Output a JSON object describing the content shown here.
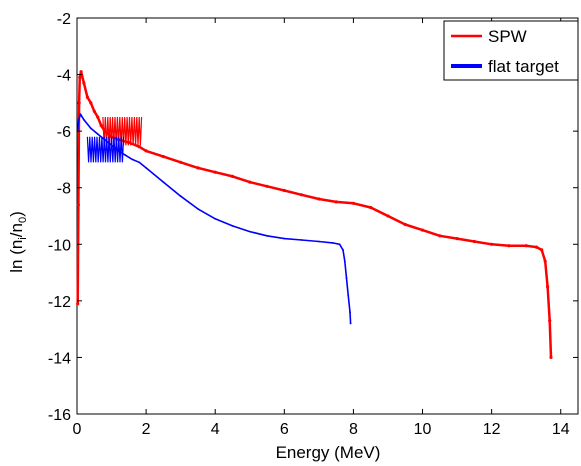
{
  "chart_data": {
    "type": "line",
    "title": "",
    "xlabel": "Energy (MeV)",
    "ylabel_parts": {
      "prefix": "ln (n",
      "sub1": "i",
      "mid": "/n",
      "sub2": "0",
      "suffix": ")"
    },
    "xlim": [
      0,
      14.5
    ],
    "ylim": [
      -16,
      -2
    ],
    "x_ticks": [
      0,
      2,
      4,
      6,
      8,
      10,
      12,
      14
    ],
    "y_ticks": [
      -16,
      -14,
      -12,
      -10,
      -8,
      -6,
      -4,
      -2
    ],
    "grid": false,
    "legend_position": "top-right",
    "series": [
      {
        "name": "SPW",
        "color": "#ff0000",
        "band": {
          "x_start": 0.75,
          "x_end": 1.9,
          "low": -6.5,
          "high": -5.5
        },
        "points": [
          [
            0.02,
            -12.1
          ],
          [
            0.04,
            -8.6
          ],
          [
            0.06,
            -5.0
          ],
          [
            0.08,
            -4.1
          ],
          [
            0.12,
            -3.9
          ],
          [
            0.2,
            -4.3
          ],
          [
            0.3,
            -4.8
          ],
          [
            0.4,
            -5.0
          ],
          [
            0.5,
            -5.3
          ],
          [
            0.6,
            -5.5
          ],
          [
            0.7,
            -5.8
          ],
          [
            0.8,
            -6.0
          ],
          [
            1.0,
            -6.2
          ],
          [
            1.2,
            -6.3
          ],
          [
            1.5,
            -6.4
          ],
          [
            1.8,
            -6.55
          ],
          [
            2.0,
            -6.7
          ],
          [
            2.5,
            -6.9
          ],
          [
            3.0,
            -7.1
          ],
          [
            3.5,
            -7.3
          ],
          [
            4.0,
            -7.45
          ],
          [
            4.5,
            -7.6
          ],
          [
            5.0,
            -7.8
          ],
          [
            5.5,
            -7.95
          ],
          [
            6.0,
            -8.1
          ],
          [
            6.5,
            -8.25
          ],
          [
            7.0,
            -8.4
          ],
          [
            7.5,
            -8.5
          ],
          [
            8.0,
            -8.55
          ],
          [
            8.5,
            -8.7
          ],
          [
            9.0,
            -9.0
          ],
          [
            9.5,
            -9.3
          ],
          [
            10.0,
            -9.5
          ],
          [
            10.5,
            -9.7
          ],
          [
            11.0,
            -9.8
          ],
          [
            11.5,
            -9.9
          ],
          [
            12.0,
            -10.0
          ],
          [
            12.5,
            -10.05
          ],
          [
            13.0,
            -10.05
          ],
          [
            13.3,
            -10.1
          ],
          [
            13.45,
            -10.2
          ],
          [
            13.55,
            -10.6
          ],
          [
            13.62,
            -11.5
          ],
          [
            13.68,
            -12.7
          ],
          [
            13.72,
            -14.0
          ]
        ]
      },
      {
        "name": "flat target",
        "color": "#0000ff",
        "band": {
          "x_start": 0.3,
          "x_end": 1.35,
          "low": -7.1,
          "high": -6.2
        },
        "points": [
          [
            0.02,
            -6.0
          ],
          [
            0.05,
            -5.6
          ],
          [
            0.1,
            -5.4
          ],
          [
            0.2,
            -5.6
          ],
          [
            0.4,
            -5.9
          ],
          [
            0.6,
            -6.1
          ],
          [
            0.8,
            -6.3
          ],
          [
            1.0,
            -6.5
          ],
          [
            1.2,
            -6.7
          ],
          [
            1.4,
            -6.85
          ],
          [
            1.6,
            -7.0
          ],
          [
            1.8,
            -7.1
          ],
          [
            2.0,
            -7.3
          ],
          [
            2.5,
            -7.8
          ],
          [
            3.0,
            -8.3
          ],
          [
            3.5,
            -8.75
          ],
          [
            4.0,
            -9.1
          ],
          [
            4.5,
            -9.35
          ],
          [
            5.0,
            -9.55
          ],
          [
            5.5,
            -9.7
          ],
          [
            6.0,
            -9.8
          ],
          [
            6.5,
            -9.85
          ],
          [
            7.0,
            -9.9
          ],
          [
            7.4,
            -9.95
          ],
          [
            7.6,
            -10.0
          ],
          [
            7.7,
            -10.2
          ],
          [
            7.75,
            -10.6
          ],
          [
            7.8,
            -11.2
          ],
          [
            7.85,
            -11.8
          ],
          [
            7.9,
            -12.4
          ],
          [
            7.92,
            -12.8
          ]
        ]
      }
    ]
  }
}
